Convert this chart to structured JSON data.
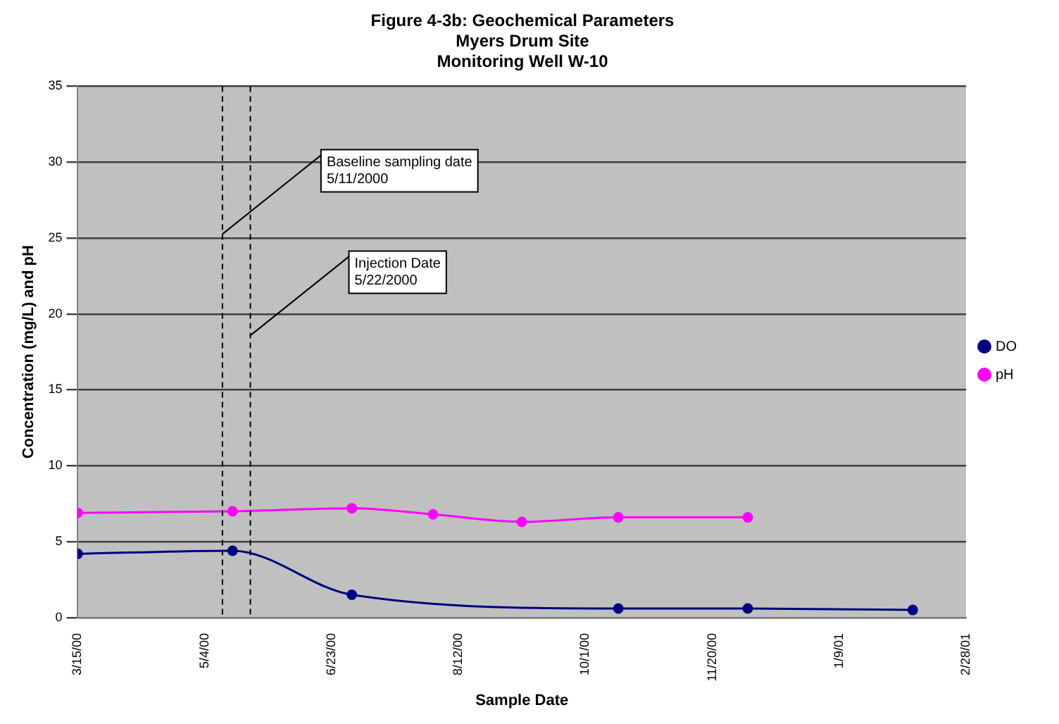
{
  "chart_data": {
    "type": "line",
    "title": [
      "Figure 4-3b: Geochemical Parameters",
      "Myers Drum Site",
      "Monitoring Well W-10"
    ],
    "xlabel": "Sample Date",
    "ylabel": "Concentration (mg/L) and pH",
    "xlim": [
      "2000-03-15",
      "2001-02-28"
    ],
    "xticks": [
      {
        "value": "2000-03-15",
        "label": "3/15/00"
      },
      {
        "value": "2000-05-04",
        "label": "5/4/00"
      },
      {
        "value": "2000-06-23",
        "label": "6/23/00"
      },
      {
        "value": "2000-08-12",
        "label": "8/12/00"
      },
      {
        "value": "2000-10-01",
        "label": "10/1/00"
      },
      {
        "value": "2000-11-20",
        "label": "11/20/00"
      },
      {
        "value": "2001-01-09",
        "label": "1/9/01"
      },
      {
        "value": "2001-02-28",
        "label": "2/28/01"
      }
    ],
    "ylim": [
      0,
      35
    ],
    "yticks": [
      0,
      5,
      10,
      15,
      20,
      25,
      30,
      35
    ],
    "series": [
      {
        "name": "DO",
        "color": "#000080",
        "x": [
          "2000-03-15",
          "2000-05-15",
          "2000-07-01",
          "2000-10-14",
          "2000-12-04",
          "2001-02-07"
        ],
        "values": [
          4.2,
          4.4,
          1.5,
          0.6,
          0.6,
          0.5
        ]
      },
      {
        "name": "pH",
        "color": "#ff00ff",
        "x": [
          "2000-03-15",
          "2000-05-15",
          "2000-07-01",
          "2000-08-02",
          "2000-09-06",
          "2000-10-14",
          "2000-12-04"
        ],
        "values": [
          6.9,
          7.0,
          7.2,
          6.8,
          6.3,
          6.6,
          6.6
        ]
      }
    ],
    "ref_lines": [
      {
        "axis": "x",
        "value": "2000-05-11",
        "label": "Baseline sampling date 5/11/2000",
        "line_style": "dashed",
        "color": "#000000"
      },
      {
        "axis": "x",
        "value": "2000-05-22",
        "label": "Injection Date 5/22/2000",
        "line_style": "dashed",
        "color": "#000000"
      }
    ],
    "grid": "y",
    "legend": "right",
    "marker": "circle",
    "line_style": "solid"
  }
}
